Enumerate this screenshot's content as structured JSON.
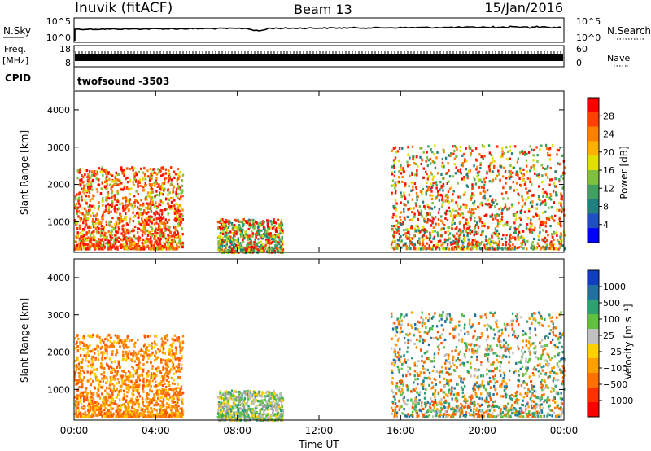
{
  "header": {
    "station": "Inuvik (fitACF)",
    "beam": "Beam 13",
    "date": "15/Jan/2016"
  },
  "noise_panel": {
    "left_label": "N.Sky",
    "right_label": "N.Search",
    "left_ticks": [
      "10^5",
      "10^0"
    ],
    "right_ticks": [
      "10^5",
      "10^0"
    ]
  },
  "freq_panel": {
    "left_label_1": "Freq.",
    "left_label_2": "[MHz]",
    "right_label": "Nave",
    "left_ticks": [
      "18",
      "8"
    ],
    "right_ticks": [
      "60",
      "0"
    ]
  },
  "cpid_panel": {
    "label": "CPID",
    "program": "twofsound",
    "cpid_value": "-3503"
  },
  "chart_data": [
    {
      "type": "heatmap",
      "title": "",
      "ylabel": "Slant Range [km]",
      "xlabel": "",
      "quantity": "Power [dB]",
      "y_ticks": [
        "4000",
        "3000",
        "2000",
        "1000"
      ],
      "ylim": [
        180,
        4500
      ],
      "xlim_hours": [
        0,
        24
      ],
      "colorbar": {
        "label": "Power [dB]",
        "tick_labels": [
          "28",
          "24",
          "20",
          "16",
          "12",
          "8",
          "4"
        ],
        "colors": [
          "#ff0000",
          "#ff4000",
          "#ff8000",
          "#ffb000",
          "#e0e000",
          "#80c040",
          "#40a060",
          "#208080",
          "#2050c0",
          "#0000ff"
        ]
      },
      "regions": [
        {
          "x": [
            0.0,
            5.3
          ],
          "y": [
            300,
            2500
          ],
          "dominant": "red-orange"
        },
        {
          "x": [
            7.0,
            10.2
          ],
          "y": [
            180,
            1100
          ],
          "dominant": "green-red"
        },
        {
          "x": [
            15.5,
            24.0
          ],
          "y": [
            300,
            3100
          ],
          "dominant": "red-green"
        }
      ]
    },
    {
      "type": "heatmap",
      "title": "",
      "ylabel": "Slant Range [km]",
      "xlabel": "Time UT",
      "quantity": "Velocity [m s^-1]",
      "y_ticks": [
        "4000",
        "3000",
        "2000",
        "1000"
      ],
      "x_ticks": [
        "00:00",
        "04:00",
        "08:00",
        "12:00",
        "16:00",
        "20:00",
        "00:00"
      ],
      "ylim": [
        180,
        4500
      ],
      "xlim_hours": [
        0,
        24
      ],
      "colorbar": {
        "label": "Velocity [m s⁻¹]",
        "tick_labels": [
          "1000",
          "500",
          "100",
          "25",
          "−25",
          "−100",
          "−500",
          "−1000"
        ],
        "colors": [
          "#1040c0",
          "#2070a0",
          "#30a070",
          "#60c040",
          "#c0c0c0",
          "#ffd000",
          "#ffa000",
          "#ff7000",
          "#ff3000",
          "#ff0000"
        ]
      },
      "regions": [
        {
          "x": [
            0.0,
            5.3
          ],
          "y": [
            300,
            2500
          ],
          "dominant": "orange"
        },
        {
          "x": [
            7.0,
            10.2
          ],
          "y": [
            180,
            1000
          ],
          "dominant": "green-grey"
        },
        {
          "x": [
            15.5,
            24.0
          ],
          "y": [
            300,
            3100
          ],
          "dominant": "orange-green"
        }
      ]
    }
  ]
}
